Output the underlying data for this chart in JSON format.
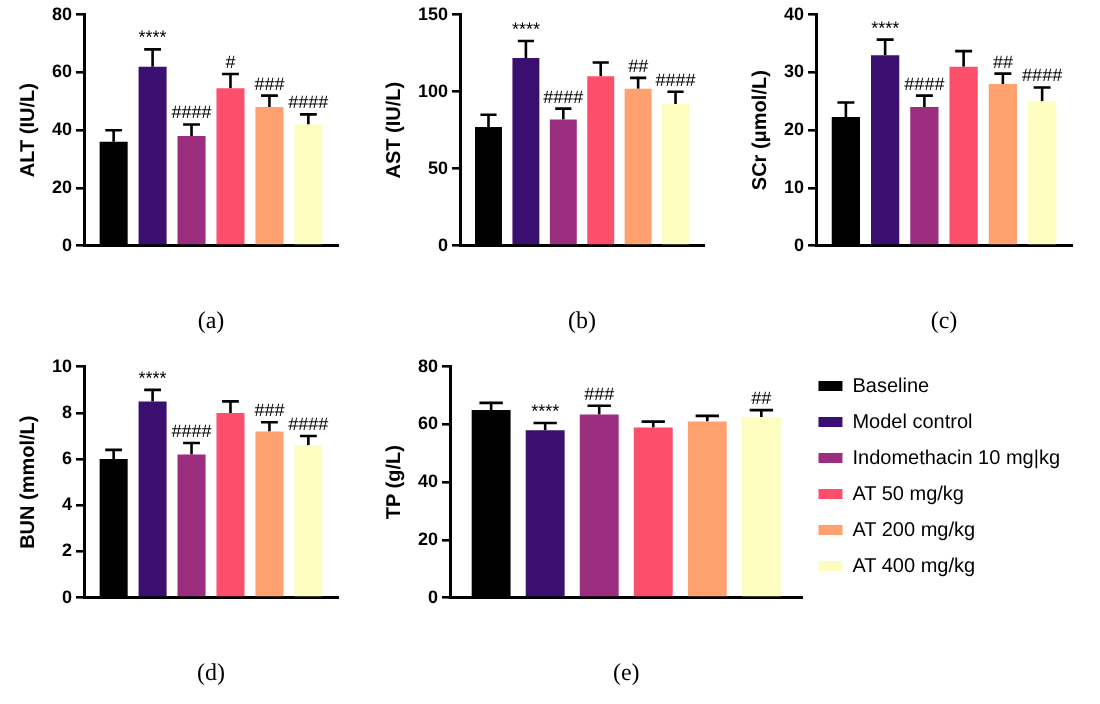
{
  "chart_data": [
    {
      "type": "bar",
      "categories": [
        null
      ],
      "ylabel": "ALT (IU/L)",
      "xlabel": "(a)",
      "ylim": [
        0,
        80
      ],
      "yticks": [
        0,
        20,
        40,
        60,
        80
      ],
      "series": [
        {
          "color": "#000000",
          "values": [
            36
          ],
          "errors": [
            [
              36,
              40
            ]
          ]
        },
        {
          "color": "#3b0f70",
          "values": [
            62
          ],
          "errors": [
            [
              62,
              68
            ]
          ],
          "value_labels": [
            "****"
          ]
        },
        {
          "color": "#9c2e7f",
          "values": [
            38
          ],
          "errors": [
            [
              38,
              42
            ]
          ],
          "value_labels": [
            "####"
          ]
        },
        {
          "color": "#fb4f6b",
          "values": [
            54.5
          ],
          "errors": [
            [
              54.5,
              59.5
            ]
          ],
          "value_labels": [
            "#"
          ]
        },
        {
          "color": "#fea16e",
          "values": [
            48
          ],
          "errors": [
            [
              48,
              52
            ]
          ],
          "value_labels": [
            "###"
          ]
        },
        {
          "color": "#fcfdbf",
          "values": [
            42
          ],
          "errors": [
            [
              42,
              45.5
            ]
          ],
          "value_labels": [
            "####"
          ]
        }
      ]
    },
    {
      "type": "bar",
      "categories": [
        null
      ],
      "ylabel": "AST (IU/L)",
      "xlabel": "(b)",
      "ylim": [
        0,
        150
      ],
      "yticks": [
        0,
        50,
        100,
        150
      ],
      "series": [
        {
          "color": "#000000",
          "values": [
            77
          ],
          "errors": [
            [
              77,
              85
            ]
          ]
        },
        {
          "color": "#3b0f70",
          "values": [
            122
          ],
          "errors": [
            [
              122,
              133
            ]
          ],
          "value_labels": [
            "****"
          ]
        },
        {
          "color": "#9c2e7f",
          "values": [
            82
          ],
          "errors": [
            [
              82,
              89
            ]
          ],
          "value_labels": [
            "####"
          ]
        },
        {
          "color": "#fb4f6b",
          "values": [
            110
          ],
          "errors": [
            [
              110,
              119
            ]
          ]
        },
        {
          "color": "#fea16e",
          "values": [
            102
          ],
          "errors": [
            [
              102,
              109
            ]
          ],
          "value_labels": [
            "##"
          ]
        },
        {
          "color": "#fcfdbf",
          "values": [
            92
          ],
          "errors": [
            [
              92,
              100
            ]
          ],
          "value_labels": [
            "####"
          ]
        }
      ]
    },
    {
      "type": "bar",
      "categories": [
        null
      ],
      "ylabel": "SCr (μmol/L)",
      "xlabel": "(c)",
      "ylim": [
        0,
        40
      ],
      "yticks": [
        0,
        10,
        20,
        30,
        40
      ],
      "series": [
        {
          "color": "#000000",
          "values": [
            22.3
          ],
          "errors": [
            [
              22.3,
              24.8
            ]
          ]
        },
        {
          "color": "#3b0f70",
          "values": [
            33
          ],
          "errors": [
            [
              33,
              35.7
            ]
          ],
          "value_labels": [
            "****"
          ]
        },
        {
          "color": "#9c2e7f",
          "values": [
            24
          ],
          "errors": [
            [
              24,
              26
            ]
          ],
          "value_labels": [
            "####"
          ]
        },
        {
          "color": "#fb4f6b",
          "values": [
            31
          ],
          "errors": [
            [
              31,
              33.7
            ]
          ]
        },
        {
          "color": "#fea16e",
          "values": [
            28
          ],
          "errors": [
            [
              28,
              29.8
            ]
          ],
          "value_labels": [
            "##"
          ]
        },
        {
          "color": "#fcfdbf",
          "values": [
            25
          ],
          "errors": [
            [
              25,
              27.4
            ]
          ],
          "value_labels": [
            "####"
          ]
        }
      ]
    },
    {
      "type": "bar",
      "categories": [
        null
      ],
      "ylabel": "BUN (mmol/L)",
      "xlabel": "(d)",
      "ylim": [
        0,
        10
      ],
      "yticks": [
        0,
        2,
        4,
        6,
        8,
        10
      ],
      "series": [
        {
          "color": "#000000",
          "values": [
            6
          ],
          "errors": [
            [
              6,
              6.4
            ]
          ]
        },
        {
          "color": "#3b0f70",
          "values": [
            8.5
          ],
          "errors": [
            [
              8.5,
              9
            ]
          ],
          "value_labels": [
            "****"
          ]
        },
        {
          "color": "#9c2e7f",
          "values": [
            6.2
          ],
          "errors": [
            [
              6.2,
              6.7
            ]
          ],
          "value_labels": [
            "####"
          ]
        },
        {
          "color": "#fb4f6b",
          "values": [
            8
          ],
          "errors": [
            [
              8,
              8.5
            ]
          ]
        },
        {
          "color": "#fea16e",
          "values": [
            7.2
          ],
          "errors": [
            [
              7.2,
              7.6
            ]
          ],
          "value_labels": [
            "###"
          ]
        },
        {
          "color": "#fcfdbf",
          "values": [
            6.6
          ],
          "errors": [
            [
              6.6,
              7
            ]
          ],
          "value_labels": [
            "####"
          ]
        }
      ]
    },
    {
      "type": "bar",
      "categories": [
        null
      ],
      "ylabel": "TP (g/L)",
      "xlabel": "(e)",
      "ylim": [
        0,
        80
      ],
      "yticks": [
        0,
        20,
        40,
        60,
        80
      ],
      "legend": "right",
      "series": [
        {
          "name": "Baseline",
          "color": "#000000",
          "values": [
            65
          ],
          "errors": [
            [
              65,
              67.5
            ]
          ]
        },
        {
          "name": "Model control",
          "color": "#3b0f70",
          "values": [
            58
          ],
          "errors": [
            [
              58,
              60.5
            ]
          ],
          "value_labels": [
            "****"
          ]
        },
        {
          "name": "Indomethacin 10 mg|kg",
          "color": "#9c2e7f",
          "values": [
            63.5
          ],
          "errors": [
            [
              63.5,
              66.5
            ]
          ],
          "value_labels": [
            "###"
          ]
        },
        {
          "name": "AT 50 mg/kg",
          "color": "#fb4f6b",
          "values": [
            59
          ],
          "errors": [
            [
              59,
              61
            ]
          ]
        },
        {
          "name": "AT 200 mg/kg",
          "color": "#fea16e",
          "values": [
            61
          ],
          "errors": [
            [
              61,
              63
            ]
          ]
        },
        {
          "name": "AT 400 mg/kg",
          "color": "#fcfdbf",
          "values": [
            62.5
          ],
          "errors": [
            [
              62.5,
              65
            ]
          ],
          "value_labels": [
            "##"
          ]
        }
      ]
    }
  ]
}
